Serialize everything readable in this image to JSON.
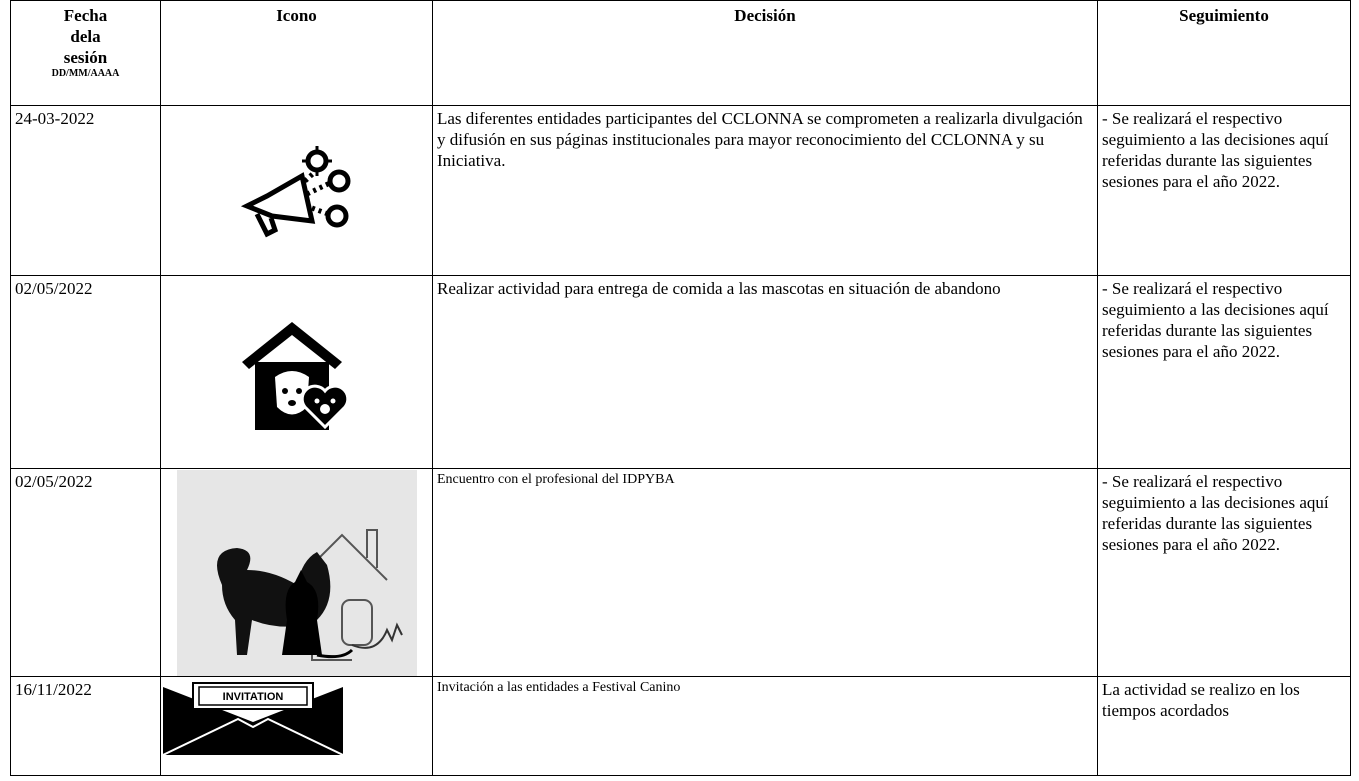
{
  "table": {
    "header": {
      "date": [
        "Fecha",
        "dela",
        "sesión"
      ],
      "date_format": "DD/MM/AAAA",
      "icon": "Icono",
      "decision": "Decisión",
      "followup": "Seguimiento"
    },
    "rows": [
      {
        "date": "24-03-2022",
        "decision": "Las diferentes entidades participantes del CCLONNA se comprometen a realizarla divulgación y difusión en sus páginas institucionales para mayor reconocimiento del CCLONNA y su Iniciativa.",
        "followup": "- Se realizará el respectivo seguimiento a las decisiones aquí referidas durante las siguientes sesiones para el año 2022."
      },
      {
        "date": "02/05/2022",
        "decision": "Realizar actividad para entrega de comida a las mascotas en situación de abandono",
        "followup": "- Se realizará el respectivo seguimiento a las decisiones aquí referidas durante las siguientes sesiones para el año 2022."
      },
      {
        "date": "02/05/2022",
        "decision": "Encuentro con el profesional del IDPYBA",
        "followup": "- Se realizará el respectivo seguimiento a las decisiones aquí referidas durante las siguientes sesiones para el año 2022."
      },
      {
        "date": "16/11/2022",
        "icon_text": "INVITATION",
        "decision": "Invitación a las entidades a Festival Canino",
        "followup": "La actividad se realizo en los tiempos acordados"
      }
    ]
  }
}
